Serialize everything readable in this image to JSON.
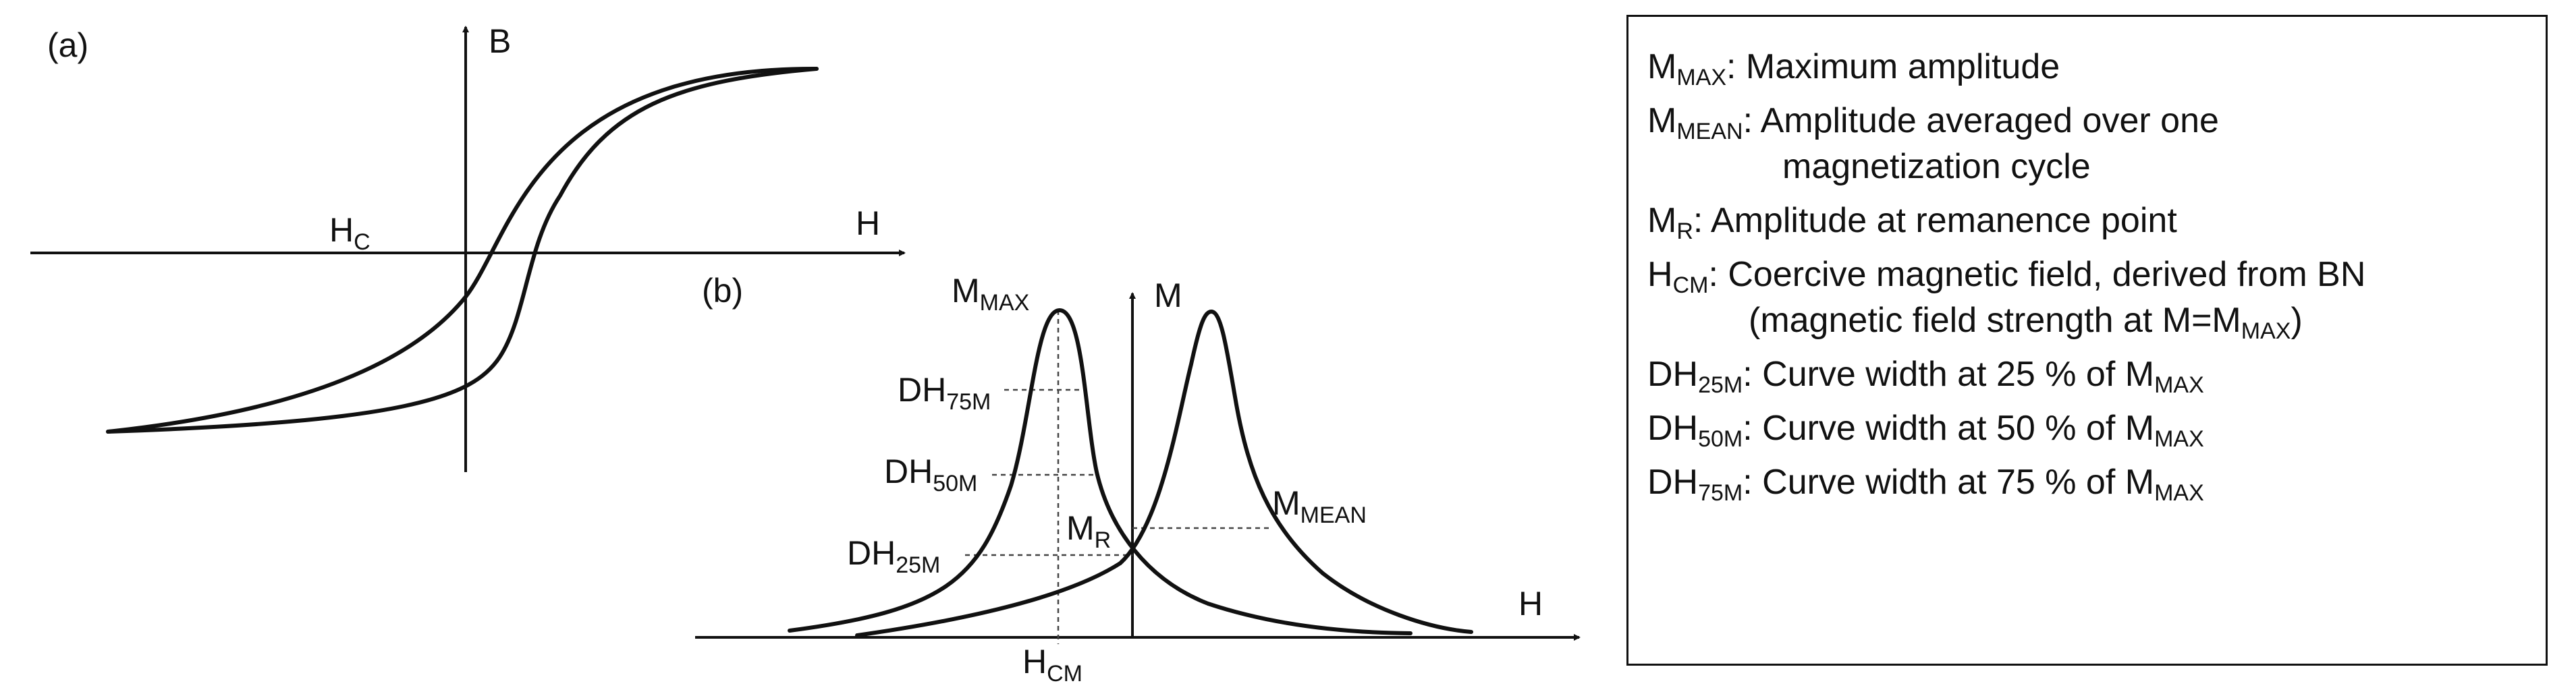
{
  "panel_a": {
    "tag": "(a)",
    "y_axis": "B",
    "x_axis": "H",
    "coercive": {
      "main": "H",
      "sub": "C"
    }
  },
  "panel_b": {
    "tag": "(b)",
    "y_axis": "M",
    "x_axis": "H",
    "max": {
      "main": "M",
      "sub": "MAX"
    },
    "mean": {
      "main": "M",
      "sub": "MEAN"
    },
    "remanence": {
      "main": "M",
      "sub": "R"
    },
    "dh75": {
      "main": "DH",
      "sub": "75M"
    },
    "dh50": {
      "main": "DH",
      "sub": "50M"
    },
    "dh25": {
      "main": "DH",
      "sub": "25M"
    },
    "hcm": {
      "main": "H",
      "sub": "CM"
    }
  },
  "legend": [
    {
      "sym": "M",
      "sub": "MAX",
      "text": ": Maximum amplitude"
    },
    {
      "sym": "M",
      "sub": "MEAN",
      "text": ": Amplitude averaged over one",
      "cont": "magnetization cycle"
    },
    {
      "sym": "M",
      "sub": "R",
      "text": ": Amplitude at remanence point"
    },
    {
      "sym": "H",
      "sub": "CM",
      "text": ": Coercive magnetic field, derived from BN",
      "cont_pre": "(magnetic field strength at M=M",
      "cont_sub": "MAX",
      "cont_post": ")"
    },
    {
      "sym": "DH",
      "sub": "25M",
      "pre": ": Curve width at 25 % of M",
      "post_sub": "MAX"
    },
    {
      "sym": "DH",
      "sub": "50M",
      "pre": ": Curve width at 50 % of M",
      "post_sub": "MAX"
    },
    {
      "sym": "DH",
      "sub": "75M",
      "pre": ": Curve width at 75 % of M",
      "post_sub": "MAX"
    }
  ]
}
